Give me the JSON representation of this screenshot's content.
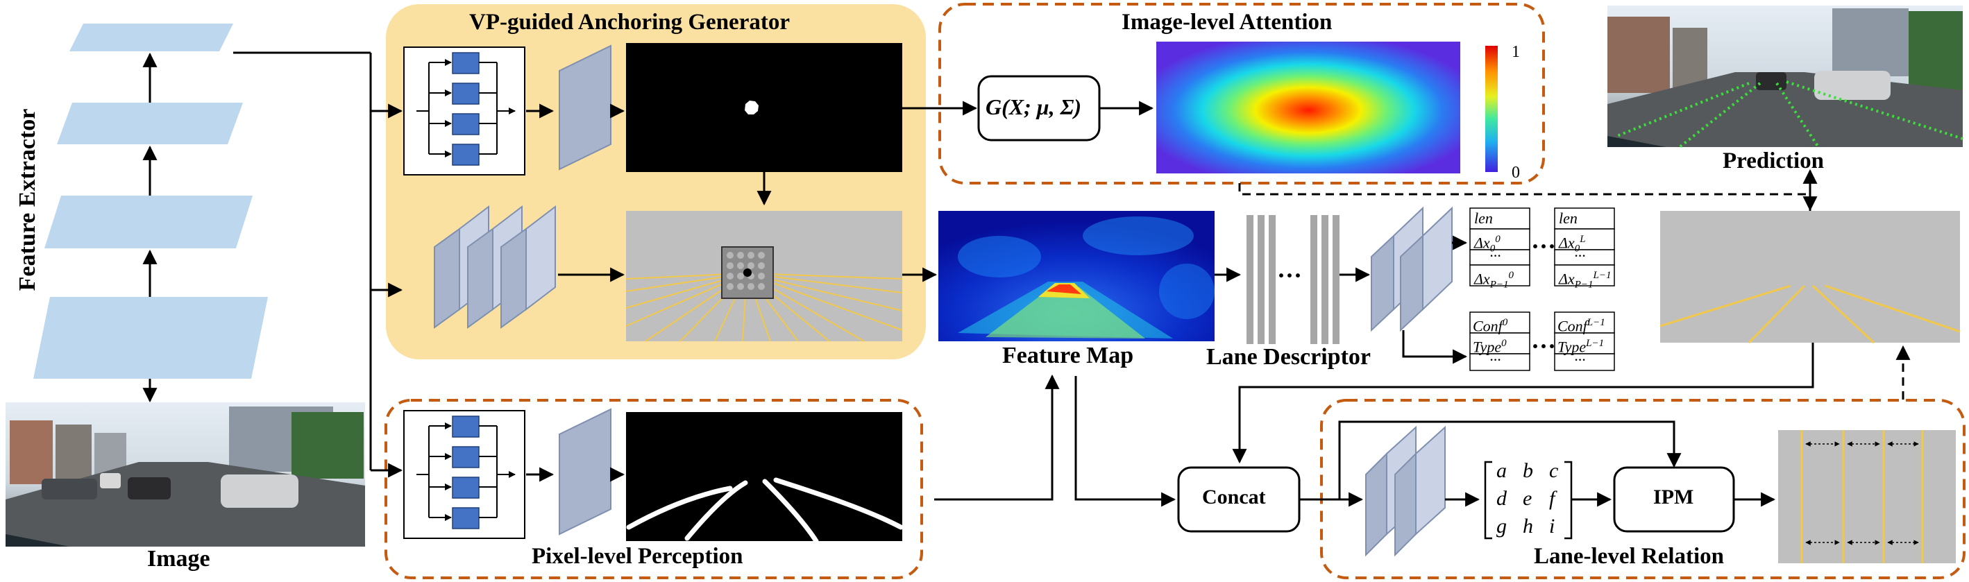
{
  "labels": {
    "feature_extractor": "Feature Extractor",
    "image": "Image",
    "vp_generator": "VP-guided Anchoring Generator",
    "image_attention": "Image-level Attention",
    "gaussian": "G(X; μ, Σ)",
    "colorbar_max": "1",
    "colorbar_min": "0",
    "prediction": "Prediction",
    "feature_map": "Feature Map",
    "lane_descriptor": "Lane Descriptor",
    "pixel_perception": "Pixel-level Perception",
    "concat": "Concat",
    "ipm": "IPM",
    "lane_relation": "Lane-level Relation",
    "ellipsis": "···"
  },
  "descriptor_tables": {
    "first_geometry": [
      "len",
      "Δx_0^0",
      "···",
      "Δx_{P−1}^0"
    ],
    "last_geometry": [
      "len",
      "Δx_0^L",
      "···",
      "Δx_{P−1}^{L−1}"
    ],
    "first_class": [
      "Conf^0",
      "Type^0",
      "···"
    ],
    "last_class": [
      "Conf^{L−1}",
      "Type^{L−1}",
      "···"
    ]
  },
  "matrix": [
    "a",
    "b",
    "c",
    "d",
    "e",
    "f",
    "g",
    "h",
    "i"
  ],
  "colors": {
    "vp_panel": "#fbe1a1",
    "dashed_border": "#c55a11",
    "feature_layer": "#bdd7ee",
    "conv_block": "#4472c4",
    "conv_slab": "#a7b4cc",
    "lane_yellow": "#f2c84b",
    "lane_green": "#3adf3a",
    "canvas_gray": "#bfbfbf"
  }
}
